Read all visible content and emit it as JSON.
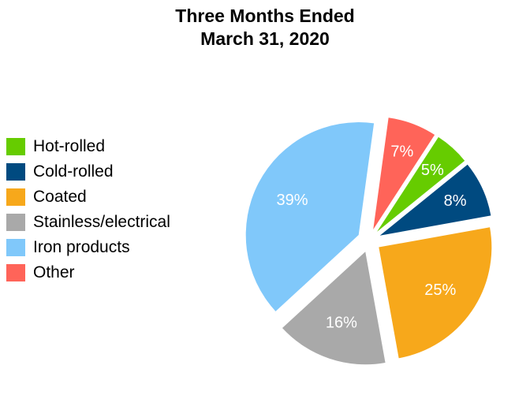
{
  "chart_data": {
    "type": "pie",
    "title": [
      "Three Months Ended",
      "March 31, 2020"
    ],
    "slices": [
      {
        "name": "Hot-rolled",
        "value": 5,
        "label": "5%",
        "color": "#66CC00"
      },
      {
        "name": "Cold-rolled",
        "value": 8,
        "label": "8%",
        "color": "#004A80"
      },
      {
        "name": "Coated",
        "value": 25,
        "label": "25%",
        "color": "#F7A81B"
      },
      {
        "name": "Stainless/electrical",
        "value": 16,
        "label": "16%",
        "color": "#A9A9A9"
      },
      {
        "name": "Iron products",
        "value": 39,
        "label": "39%",
        "color": "#80C8FA"
      },
      {
        "name": "Other",
        "value": 7,
        "label": "7%",
        "color": "#FF6459"
      }
    ],
    "legend": "left",
    "exploded": true
  }
}
